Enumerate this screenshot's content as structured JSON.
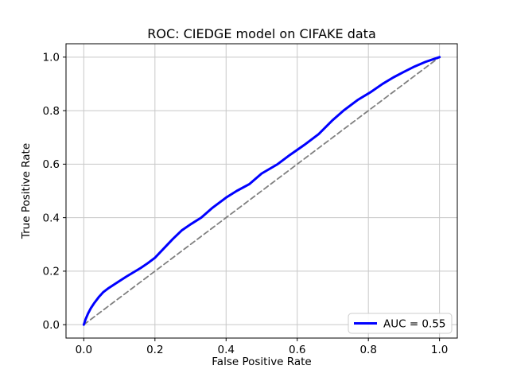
{
  "figure": {
    "background": "#ffffff",
    "frame_color": "#000000",
    "grid_color": "#c8c8c8",
    "legend_edge_color": "#cccccc"
  },
  "chart_data": {
    "type": "line",
    "title": "ROC: CIEDGE model on CIFAKE data",
    "xlabel": "False Positive Rate",
    "ylabel": "True Positive Rate",
    "xlim": [
      -0.05,
      1.05
    ],
    "ylim": [
      -0.05,
      1.05
    ],
    "grid": true,
    "xticks": {
      "values": [
        0.0,
        0.2,
        0.4,
        0.6,
        0.8,
        1.0
      ],
      "labels": [
        "0.0",
        "0.2",
        "0.4",
        "0.6",
        "0.8",
        "1.0"
      ]
    },
    "yticks": {
      "values": [
        0.0,
        0.2,
        0.4,
        0.6,
        0.8,
        1.0
      ],
      "labels": [
        "0.0",
        "0.2",
        "0.4",
        "0.6",
        "0.8",
        "1.0"
      ]
    },
    "legend": {
      "position": "lower right",
      "entries": [
        {
          "label": "AUC = 0.55",
          "color": "#0000ff",
          "style": "solid"
        }
      ]
    },
    "auc": 0.55,
    "series": [
      {
        "name": "roc-curve",
        "color": "#0000ff",
        "line_style": "solid",
        "line_width": 3,
        "x": [
          0.0,
          0.005,
          0.012,
          0.02,
          0.03,
          0.042,
          0.055,
          0.07,
          0.085,
          0.1,
          0.12,
          0.14,
          0.16,
          0.18,
          0.2,
          0.225,
          0.25,
          0.275,
          0.3,
          0.33,
          0.36,
          0.4,
          0.43,
          0.465,
          0.5,
          0.545,
          0.58,
          0.62,
          0.66,
          0.7,
          0.73,
          0.77,
          0.805,
          0.84,
          0.87,
          0.9,
          0.93,
          0.96,
          0.98,
          1.0
        ],
        "y": [
          0.0,
          0.02,
          0.042,
          0.062,
          0.082,
          0.103,
          0.122,
          0.137,
          0.15,
          0.163,
          0.18,
          0.196,
          0.212,
          0.23,
          0.25,
          0.285,
          0.32,
          0.352,
          0.375,
          0.4,
          0.435,
          0.475,
          0.5,
          0.525,
          0.565,
          0.6,
          0.635,
          0.672,
          0.712,
          0.765,
          0.8,
          0.84,
          0.868,
          0.9,
          0.924,
          0.945,
          0.965,
          0.982,
          0.991,
          1.0
        ]
      },
      {
        "name": "chance-diagonal",
        "color": "#808080",
        "line_style": "dashed",
        "line_width": 1.8,
        "x": [
          0.0,
          1.0
        ],
        "y": [
          0.0,
          1.0
        ]
      }
    ]
  }
}
